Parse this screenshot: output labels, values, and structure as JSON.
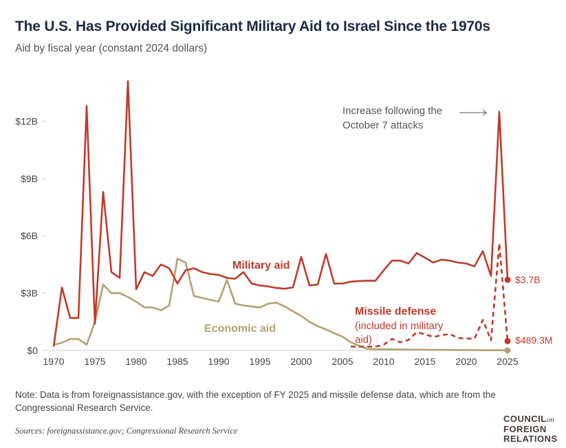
{
  "title": "The U.S. Has Provided Significant Military Aid to Israel Since the 1970s",
  "subtitle": "Aid by fiscal year (constant 2024 dollars)",
  "note": "Note: Data is from foreignassistance.gov, with the exception of FY 2025 and missile defense data, which are from the Congressional Research Service.",
  "sources": "Sources: foreignassistance.gov; Congressional Research Service",
  "logo": {
    "line1": "COUNCIL",
    "on": "on",
    "line2": "FOREIGN",
    "line3": "RELATIONS"
  },
  "colors": {
    "military": "#c0392b",
    "economic": "#b5a06f",
    "title": "#1b2a44"
  },
  "chart_data": {
    "type": "line",
    "title": "The U.S. Has Provided Significant Military Aid to Israel Since the 1970s",
    "subtitle": "Aid by fiscal year (constant 2024 dollars)",
    "xlim": [
      1970,
      2025
    ],
    "ylim": [
      0,
      14
    ],
    "x_ticks": [
      "1970",
      "1975",
      "1980",
      "1985",
      "1990",
      "1995",
      "2000",
      "2005",
      "2010",
      "2015",
      "2020",
      "2025"
    ],
    "y_ticks": [
      {
        "value": 0,
        "label": "$0"
      },
      {
        "value": 3,
        "label": "$3B"
      },
      {
        "value": 6,
        "label": "$6B"
      },
      {
        "value": 9,
        "label": "$9B"
      },
      {
        "value": 12,
        "label": "$12B"
      }
    ],
    "unit": "billions USD",
    "series": [
      {
        "name": "Military aid",
        "style": "solid",
        "color": "#c0392b",
        "start": 1970,
        "values": [
          0.2,
          3.3,
          1.7,
          1.7,
          12.8,
          1.4,
          8.3,
          4.1,
          3.8,
          14.1,
          3.2,
          4.1,
          3.9,
          4.5,
          4.3,
          3.5,
          4.2,
          4.3,
          4.1,
          4.0,
          3.96,
          3.8,
          3.75,
          4.1,
          3.5,
          3.4,
          3.35,
          3.27,
          3.23,
          3.3,
          4.9,
          3.4,
          3.45,
          5.05,
          3.5,
          3.5,
          3.6,
          3.63,
          3.65,
          3.65,
          4.2,
          4.7,
          4.7,
          4.55,
          5.1,
          4.85,
          4.6,
          4.75,
          4.7,
          4.6,
          4.55,
          4.4,
          5.2,
          3.9,
          12.5,
          3.7
        ]
      },
      {
        "name": "Economic aid",
        "style": "solid",
        "color": "#b5a06f",
        "start": 1970,
        "values": [
          0.3,
          0.4,
          0.6,
          0.6,
          0.3,
          1.5,
          3.45,
          3.0,
          3.0,
          2.8,
          2.55,
          2.25,
          2.25,
          2.1,
          2.35,
          4.8,
          4.6,
          2.85,
          2.75,
          2.65,
          2.55,
          3.7,
          2.45,
          2.35,
          2.3,
          2.25,
          2.45,
          2.5,
          2.3,
          2.05,
          1.8,
          1.5,
          1.27,
          1.1,
          0.9,
          0.72,
          0.43,
          0.25,
          0.08,
          0.06,
          0.06,
          0.05,
          0.05,
          0.04,
          0.04,
          0.04,
          0.03,
          0.03,
          0.03,
          0.02,
          0.02,
          0.02,
          0.01,
          0.01,
          0.01,
          0.0
        ]
      },
      {
        "name": "Missile defense (included in military aid)",
        "style": "dashed",
        "color": "#c0392b",
        "start": 2006,
        "values": [
          0.2,
          0.2,
          0.2,
          0.2,
          0.3,
          0.6,
          0.43,
          0.55,
          0.95,
          0.85,
          0.7,
          0.8,
          0.86,
          0.65,
          0.62,
          0.62,
          1.6,
          0.53,
          5.6,
          0.4893
        ]
      }
    ],
    "labels": {
      "military": "Military aid",
      "economic": "Economic aid",
      "missile_title": "Missile defense",
      "missile_sub1": "(included in military",
      "missile_sub2": "aid)",
      "end_military": "$3.7B",
      "end_missile": "$489.3M",
      "annotation1": "Increase following the",
      "annotation2": "October 7 attacks"
    }
  }
}
